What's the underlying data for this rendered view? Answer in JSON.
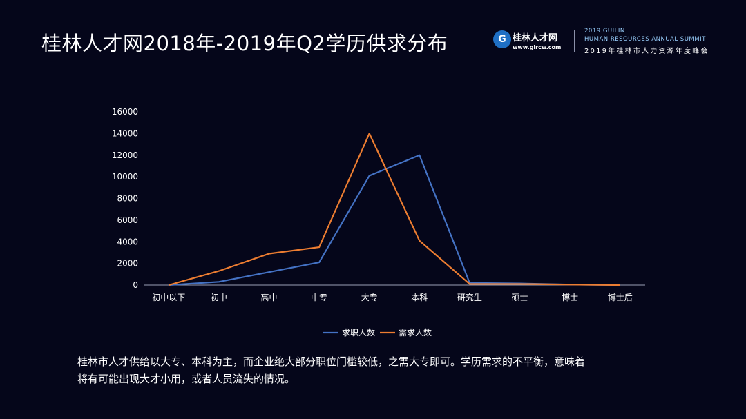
{
  "title": "桂林人才网2018年-2019年Q2学历供求分布",
  "brand": {
    "icon_glyph": "G",
    "name": "桂林人才网",
    "url": "www.glrcw.com",
    "summit_line1": "2019 GUILIN",
    "summit_line2": "HUMAN RESOURCES ANNUAL SUMMIT",
    "summit_line3": "2019年桂林市人力资源年度峰会",
    "icon_color": "#1f6fc4"
  },
  "chart_data": {
    "type": "line",
    "categories": [
      "初中以下",
      "初中",
      "高中",
      "中专",
      "大专",
      "本科",
      "研究生",
      "硕士",
      "博士",
      "博士后"
    ],
    "series": [
      {
        "name": "求职人数",
        "color": "#4472c4",
        "values": [
          0,
          300,
          1200,
          2100,
          10100,
          12000,
          200,
          150,
          50,
          0
        ]
      },
      {
        "name": "需求人数",
        "color": "#ed7d31",
        "values": [
          0,
          1300,
          2900,
          3500,
          14000,
          4100,
          100,
          100,
          50,
          0
        ]
      }
    ],
    "ylim": [
      0,
      16000
    ],
    "yticks": [
      "16000",
      "14000",
      "12000",
      "10000",
      "8000",
      "6000",
      "4000",
      "2000",
      "0"
    ],
    "title": "",
    "xlabel": "",
    "ylabel": "",
    "legend_position": "bottom",
    "grid": false
  },
  "caption": {
    "line1": "桂林市人才供给以大专、本科为主，而企业绝大部分职位门槛较低，之需大专即可。学历需求的不平衡，意味着",
    "line2": "将有可能出现大才小用，或者人员流失的情况。"
  }
}
